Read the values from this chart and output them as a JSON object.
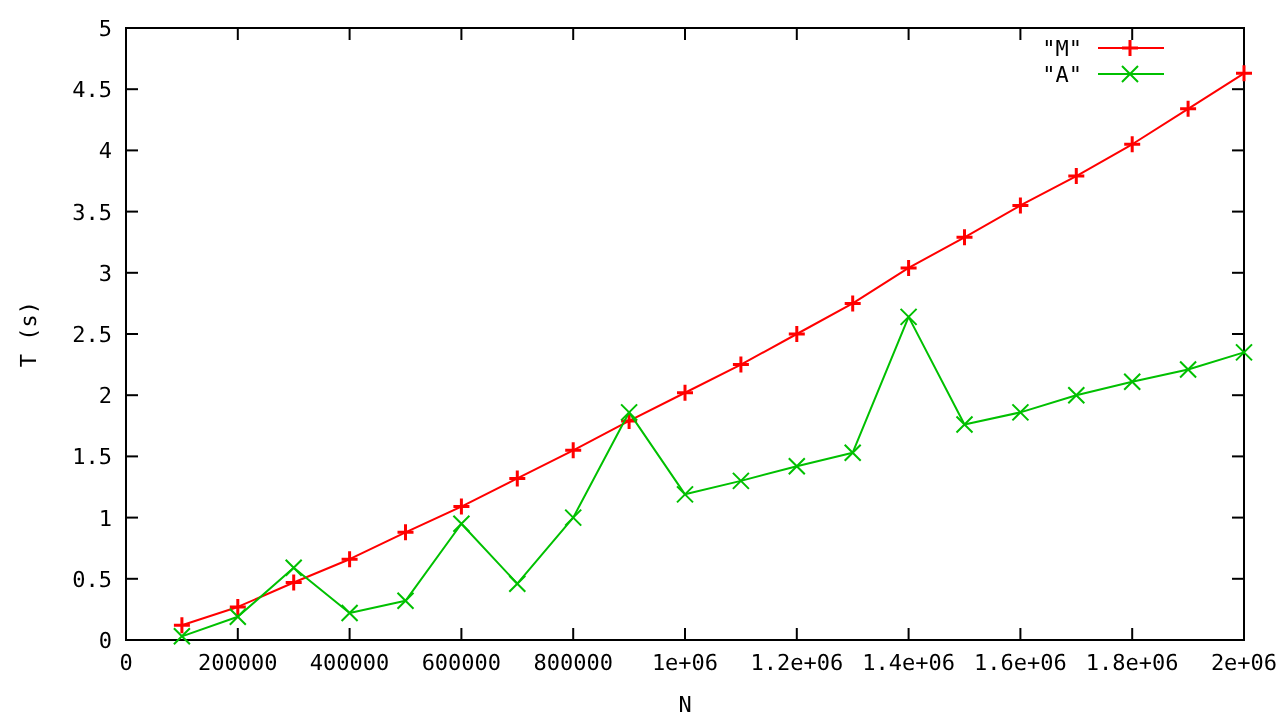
{
  "chart_data": {
    "type": "line",
    "xlabel": "N",
    "ylabel": "T (s)",
    "x": [
      100000,
      200000,
      300000,
      400000,
      500000,
      600000,
      700000,
      800000,
      900000,
      1000000,
      1100000,
      1200000,
      1300000,
      1400000,
      1500000,
      1600000,
      1700000,
      1800000,
      1900000,
      2000000
    ],
    "series": [
      {
        "name": "\"M\"",
        "color": "#ff0000",
        "marker": "cross",
        "values": [
          0.12,
          0.27,
          0.47,
          0.66,
          0.88,
          1.09,
          1.32,
          1.55,
          1.79,
          2.02,
          2.25,
          2.5,
          2.75,
          3.04,
          3.29,
          3.55,
          3.79,
          4.05,
          4.34,
          4.63
        ]
      },
      {
        "name": "\"A\"",
        "color": "#00c000",
        "marker": "x",
        "values": [
          0.03,
          0.19,
          0.59,
          0.22,
          0.32,
          0.95,
          0.46,
          1.0,
          1.86,
          1.19,
          1.3,
          1.42,
          1.53,
          2.64,
          1.76,
          1.86,
          2.0,
          2.11,
          2.21,
          2.35
        ]
      }
    ],
    "xlim": [
      0,
      2000000
    ],
    "xticks": [
      0,
      200000,
      400000,
      600000,
      800000,
      {
        "value": 1000000,
        "label": "1e+06"
      },
      {
        "value": 1200000,
        "label": "1.2e+06"
      },
      {
        "value": 1400000,
        "label": "1.4e+06"
      },
      {
        "value": 1600000,
        "label": "1.6e+06"
      },
      {
        "value": 1800000,
        "label": "1.8e+06"
      },
      {
        "value": 2000000,
        "label": "2e+06"
      }
    ],
    "ylim": [
      0,
      5
    ],
    "yticks": [
      0,
      0.5,
      1,
      1.5,
      2,
      2.5,
      3,
      3.5,
      4,
      4.5,
      5
    ],
    "grid": false,
    "legend": "top right"
  }
}
